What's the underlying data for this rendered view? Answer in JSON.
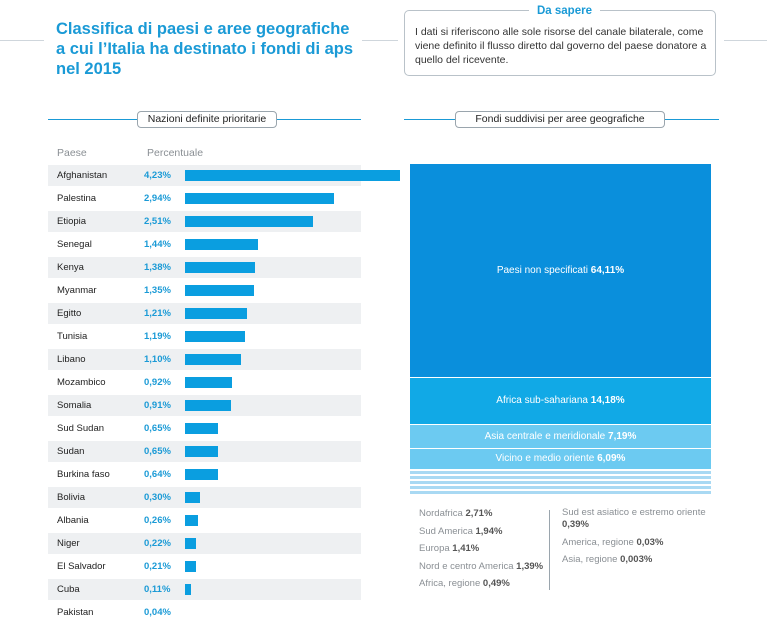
{
  "title": "Classifica di paesi e aree geografiche a cui l’Italia ha destinato i fondi di aps nel 2015",
  "info": {
    "heading": "Da sapere",
    "text": "I dati si riferiscono alle sole risorse del canale bilaterale, come viene definito il flusso diretto dal governo del paese donatore a quello del ricevente."
  },
  "left_section_label": "Nazioni definite prioritarie",
  "right_section_label": "Fondi suddivisi per aree geografiche",
  "colors": {
    "accent": "#1a9ad6",
    "bar": "#0a9ee0",
    "treemap_1": "#0a8fdc",
    "treemap_2": "#11a9e6",
    "treemap_3": "#6ccaf1"
  },
  "chart_data": [
    {
      "type": "bar",
      "orientation": "horizontal",
      "column_headers": [
        "Paese",
        "Percentuale"
      ],
      "categories": [
        "Afghanistan",
        "Palestina",
        "Etiopia",
        "Senegal",
        "Kenya",
        "Myanmar",
        "Egitto",
        "Tunisia",
        "Libano",
        "Mozambico",
        "Somalia",
        "Sud Sudan",
        "Sudan",
        "Burkina faso",
        "Bolivia",
        "Albania",
        "Niger",
        "El Salvador",
        "Cuba",
        "Pakistan"
      ],
      "values": [
        4.23,
        2.94,
        2.51,
        1.44,
        1.38,
        1.35,
        1.21,
        1.19,
        1.1,
        0.92,
        0.91,
        0.65,
        0.65,
        0.64,
        0.3,
        0.26,
        0.22,
        0.21,
        0.11,
        0.04
      ],
      "labels": [
        "4,23%",
        "2,94%",
        "2,51%",
        "1,44%",
        "1,38%",
        "1,35%",
        "1,21%",
        "1,19%",
        "1,10%",
        "0,92%",
        "0,91%",
        "0,65%",
        "0,65%",
        "0,64%",
        "0,30%",
        "0,26%",
        "0,22%",
        "0,21%",
        "0,11%",
        "0,04%"
      ],
      "xlim": [
        0,
        4.23
      ]
    },
    {
      "type": "treemap",
      "main": [
        {
          "name": "Paesi non specificati",
          "label": "64,11%",
          "value": 64.11
        },
        {
          "name": "Africa sub-sahariana",
          "label": "14,18%",
          "value": 14.18
        },
        {
          "name": "Asia centrale e meridionale",
          "label": "7,19%",
          "value": 7.19
        },
        {
          "name": "Vicino e medio oriente",
          "label": "6,09%",
          "value": 6.09
        }
      ],
      "legend_left": [
        {
          "name": "Nordafrica",
          "label": "2,71%",
          "value": 2.71
        },
        {
          "name": "Sud America",
          "label": "1,94%",
          "value": 1.94
        },
        {
          "name": "Europa",
          "label": "1,41%",
          "value": 1.41
        },
        {
          "name": "Nord e centro America",
          "label": "1,39%",
          "value": 1.39
        },
        {
          "name": "Africa, regione",
          "label": "0,49%",
          "value": 0.49
        }
      ],
      "legend_right": [
        {
          "name": "Sud est asiatico e estremo oriente",
          "label": "0,39%",
          "value": 0.39
        },
        {
          "name": "America, regione",
          "label": "0,03%",
          "value": 0.03
        },
        {
          "name": "Asia, regione",
          "label": "0,003%",
          "value": 0.003
        }
      ]
    }
  ]
}
